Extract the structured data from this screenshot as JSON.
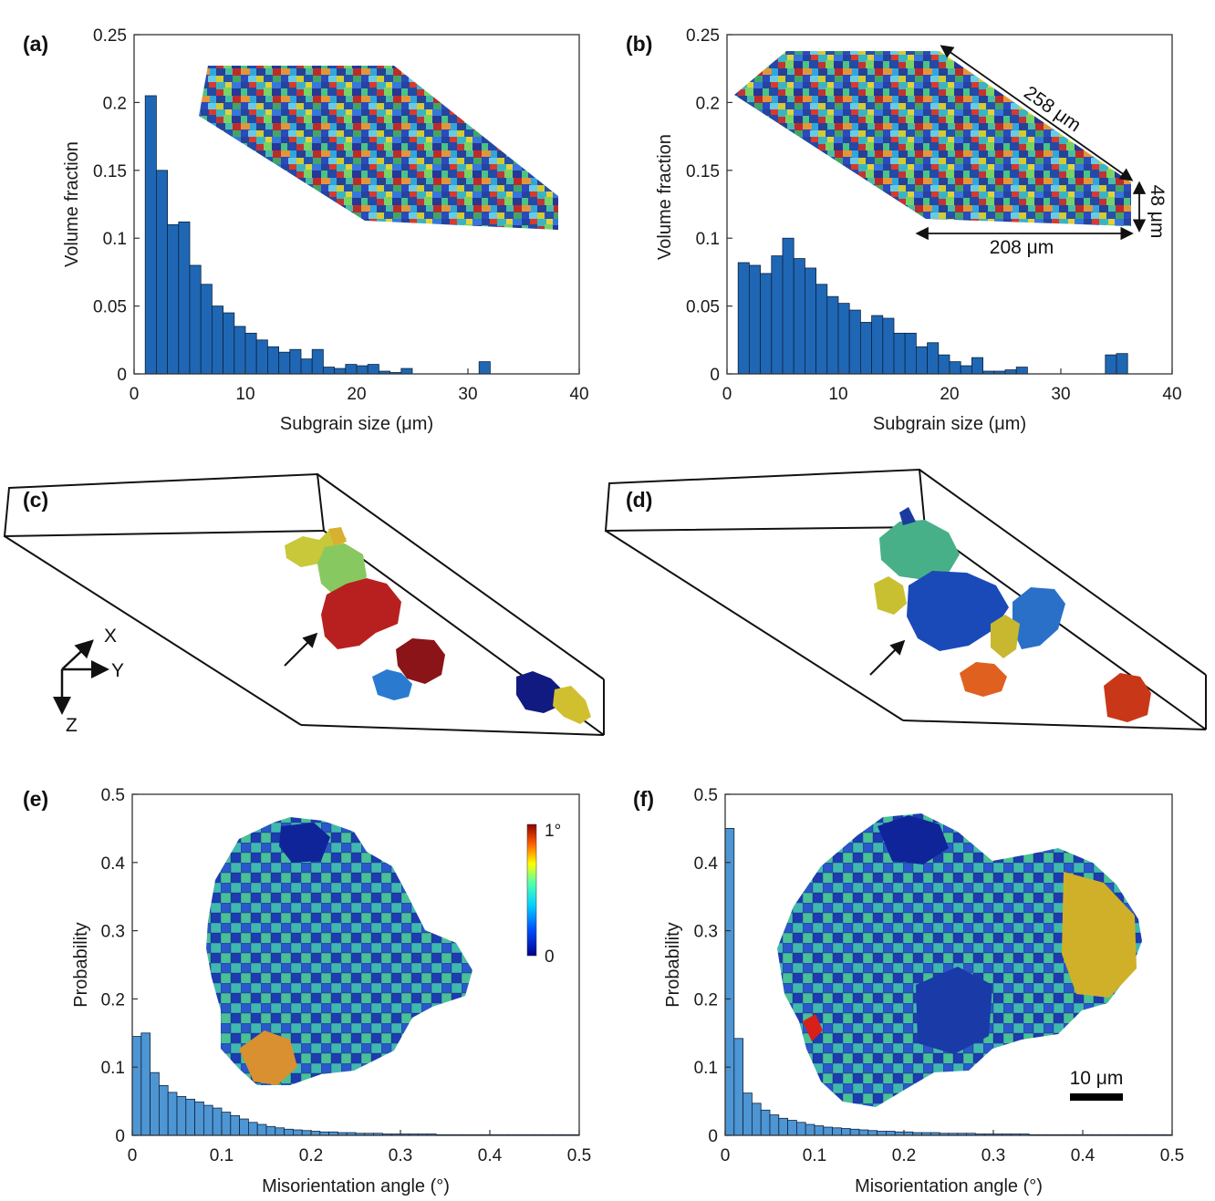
{
  "figure": {
    "panels": [
      {
        "label": "(a)"
      },
      {
        "label": "(b)"
      },
      {
        "label": "(c)"
      },
      {
        "label": "(d)"
      },
      {
        "label": "(e)"
      },
      {
        "label": "(f)"
      }
    ],
    "dimensions": {
      "length": "258 μm",
      "width": "208 μm",
      "height": "48 μm"
    },
    "axes_triad": {
      "x": "X",
      "y": "Y",
      "z": "Z"
    },
    "colorbar": {
      "max_label": "1°",
      "min_label": "0"
    },
    "scalebar": {
      "label": "10 μm"
    },
    "colors": {
      "bar_dark": "#1f67b4",
      "bar_light": "#4e95d3",
      "edge": "#111111"
    }
  },
  "chart_data": [
    {
      "panel": "(a)",
      "type": "bar",
      "xlabel": "Subgrain size (μm)",
      "ylabel": "Volume fraction",
      "xlim": [
        0,
        40
      ],
      "ylim": [
        0,
        0.25
      ],
      "xticks": [
        "0",
        "10",
        "20",
        "30",
        "40"
      ],
      "yticks": [
        "0",
        "0.05",
        "0.1",
        "0.15",
        "0.2",
        "0.25"
      ],
      "bin_width": 1,
      "bin_starts": [
        1,
        2,
        3,
        4,
        5,
        6,
        7,
        8,
        9,
        10,
        11,
        12,
        13,
        14,
        15,
        16,
        17,
        18,
        19,
        20,
        21,
        22,
        23,
        24,
        25,
        26,
        27,
        28,
        29,
        30,
        31
      ],
      "values": [
        0.205,
        0.15,
        0.11,
        0.112,
        0.08,
        0.066,
        0.05,
        0.045,
        0.035,
        0.03,
        0.025,
        0.02,
        0.016,
        0.018,
        0.011,
        0.018,
        0.005,
        0.004,
        0.007,
        0.006,
        0.007,
        0.002,
        0.001,
        0.004,
        0,
        0,
        0,
        0,
        0,
        0,
        0.009
      ]
    },
    {
      "panel": "(b)",
      "type": "bar",
      "xlabel": "Subgrain size (μm)",
      "ylabel": "Volume fraction",
      "xlim": [
        0,
        40
      ],
      "ylim": [
        0,
        0.25
      ],
      "xticks": [
        "0",
        "10",
        "20",
        "30",
        "40"
      ],
      "yticks": [
        "0",
        "0.05",
        "0.1",
        "0.15",
        "0.2",
        "0.25"
      ],
      "bin_width": 1,
      "bin_starts": [
        1,
        2,
        3,
        4,
        5,
        6,
        7,
        8,
        9,
        10,
        11,
        12,
        13,
        14,
        15,
        16,
        17,
        18,
        19,
        20,
        21,
        22,
        23,
        24,
        25,
        26,
        27,
        28,
        29,
        30,
        31,
        32,
        33,
        34,
        35,
        36
      ],
      "values": [
        0.082,
        0.08,
        0.074,
        0.087,
        0.1,
        0.085,
        0.078,
        0.066,
        0.057,
        0.052,
        0.047,
        0.038,
        0.043,
        0.041,
        0.03,
        0.03,
        0.02,
        0.023,
        0.014,
        0.009,
        0.006,
        0.012,
        0.002,
        0.002,
        0.003,
        0.005,
        0,
        0,
        0,
        0,
        0,
        0,
        0,
        0.014,
        0.015,
        0
      ]
    },
    {
      "panel": "(e)",
      "type": "bar",
      "xlabel": "Misorientation angle (°)",
      "ylabel": "Probability",
      "xlim": [
        0,
        0.5
      ],
      "ylim": [
        0,
        0.5
      ],
      "xticks": [
        "0",
        "0.1",
        "0.2",
        "0.3",
        "0.4",
        "0.5"
      ],
      "yticks": [
        "0",
        "0.1",
        "0.2",
        "0.3",
        "0.4",
        "0.5"
      ],
      "bin_width": 0.01,
      "values": [
        0.145,
        0.15,
        0.092,
        0.073,
        0.063,
        0.057,
        0.053,
        0.049,
        0.044,
        0.04,
        0.034,
        0.029,
        0.024,
        0.019,
        0.016,
        0.013,
        0.011,
        0.009,
        0.008,
        0.007,
        0.006,
        0.005,
        0.005,
        0.004,
        0.004,
        0.003,
        0.003,
        0.003,
        0.002,
        0.002,
        0.002,
        0.002,
        0.002,
        0.002,
        0.001,
        0.001,
        0.001,
        0.001,
        0.001,
        0.001,
        0.001,
        0.001,
        0.001,
        0.001,
        0.001,
        0.001,
        0.001,
        0.001,
        0.001,
        0.001
      ]
    },
    {
      "panel": "(f)",
      "type": "bar",
      "xlabel": "Misorientation angle (°)",
      "ylabel": "Probability",
      "xlim": [
        0,
        0.5
      ],
      "ylim": [
        0,
        0.5
      ],
      "xticks": [
        "0",
        "0.1",
        "0.2",
        "0.3",
        "0.4",
        "0.5"
      ],
      "yticks": [
        "0",
        "0.1",
        "0.2",
        "0.3",
        "0.4",
        "0.5"
      ],
      "bin_width": 0.01,
      "values": [
        0.45,
        0.142,
        0.062,
        0.047,
        0.037,
        0.03,
        0.025,
        0.022,
        0.019,
        0.016,
        0.014,
        0.012,
        0.011,
        0.01,
        0.009,
        0.008,
        0.007,
        0.006,
        0.006,
        0.005,
        0.005,
        0.004,
        0.004,
        0.004,
        0.003,
        0.003,
        0.003,
        0.003,
        0.002,
        0.002,
        0.002,
        0.002,
        0.002,
        0.002,
        0.001,
        0.001,
        0.001,
        0.001,
        0.001,
        0.001,
        0.001,
        0.001,
        0.001,
        0.001,
        0.001,
        0.001,
        0.001,
        0.001,
        0.001,
        0.001
      ]
    }
  ]
}
